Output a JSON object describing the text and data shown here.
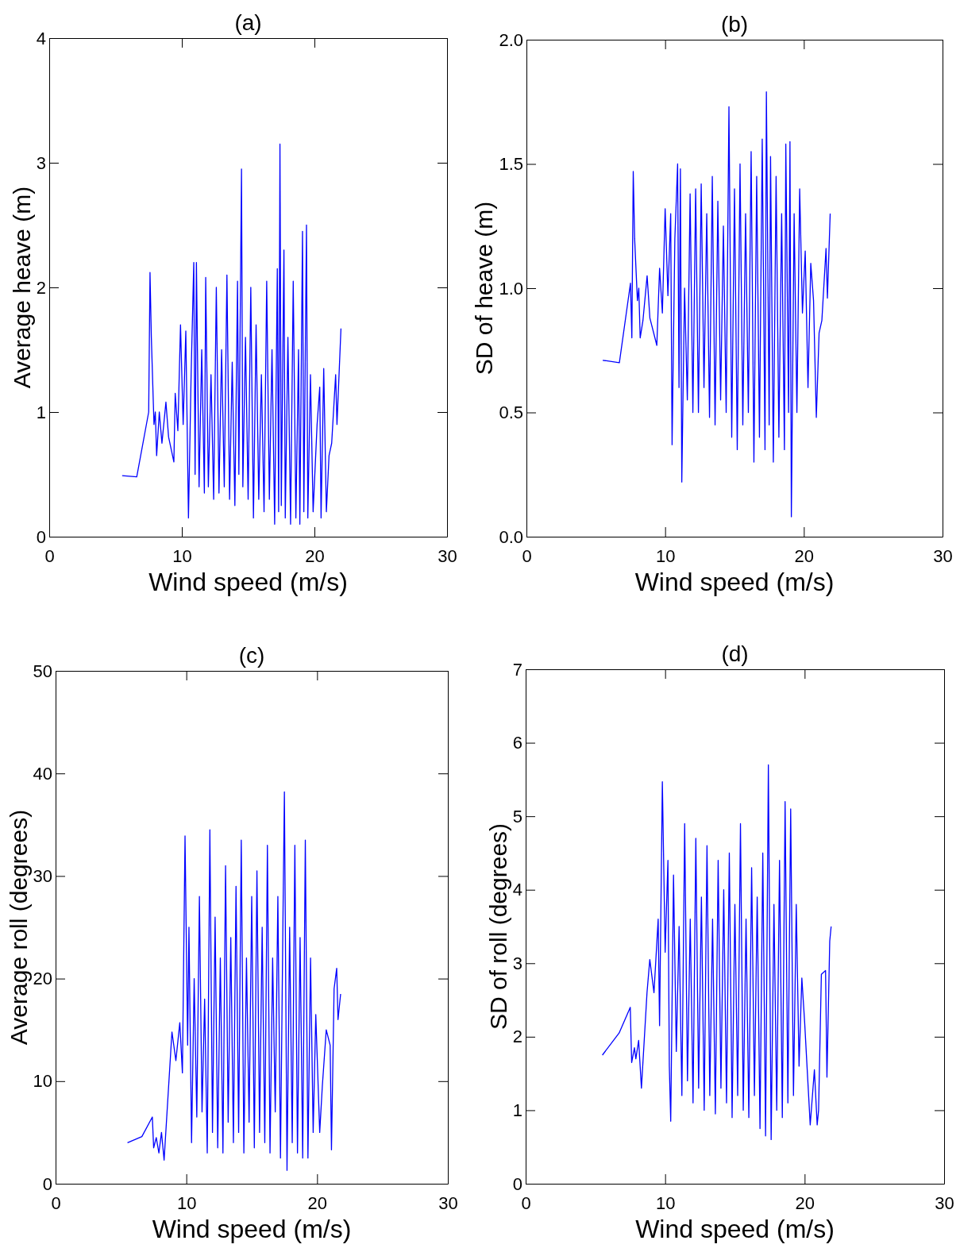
{
  "chart_data": [
    {
      "type": "line",
      "title": "(a)",
      "xlabel": "Wind speed (m/s)",
      "ylabel": "Average heave (m)",
      "xlim": [
        0,
        30
      ],
      "xticks": [
        0,
        10,
        20,
        30
      ],
      "ylim": [
        0,
        4
      ],
      "yticks": [
        0,
        1,
        2,
        3,
        4
      ],
      "grid": false,
      "series": [
        {
          "color": "#0000ff",
          "x": [
            5.5,
            6.6,
            7.5,
            7.6,
            7.7,
            7.9,
            8.0,
            8.1,
            8.3,
            8.5,
            8.8,
            9.0,
            9.4,
            9.5,
            9.7,
            9.9,
            10.1,
            10.3,
            10.5,
            10.7,
            10.9,
            11.0,
            11.1,
            11.3,
            11.5,
            11.7,
            11.8,
            12.0,
            12.2,
            12.4,
            12.6,
            12.8,
            13.0,
            13.2,
            13.4,
            13.6,
            13.8,
            14.0,
            14.2,
            14.3,
            14.5,
            14.6,
            14.8,
            15.0,
            15.2,
            15.4,
            15.6,
            15.8,
            16.0,
            16.2,
            16.4,
            16.6,
            16.8,
            17.0,
            17.2,
            17.3,
            17.4,
            17.5,
            17.7,
            17.8,
            18.0,
            18.2,
            18.4,
            18.6,
            18.8,
            18.9,
            19.1,
            19.2,
            19.4,
            19.5,
            19.7,
            19.9,
            20.2,
            20.4,
            20.5,
            20.7,
            20.9,
            21.1,
            21.3,
            21.6,
            21.7,
            22.0
          ],
          "values": [
            0.49,
            0.48,
            1.0,
            2.12,
            1.6,
            0.9,
            1.0,
            0.65,
            1.0,
            0.75,
            1.08,
            0.8,
            0.6,
            1.15,
            0.85,
            1.7,
            0.9,
            1.65,
            0.15,
            1.3,
            2.2,
            0.5,
            2.2,
            0.4,
            1.5,
            0.35,
            2.08,
            0.4,
            1.3,
            0.3,
            2.0,
            0.35,
            1.5,
            0.4,
            2.1,
            0.3,
            1.4,
            0.25,
            2.05,
            0.5,
            2.95,
            0.4,
            1.6,
            0.3,
            2.0,
            0.15,
            1.7,
            0.3,
            1.3,
            0.2,
            2.05,
            0.3,
            1.5,
            0.1,
            2.15,
            0.2,
            3.15,
            0.25,
            2.3,
            0.15,
            1.6,
            0.1,
            2.05,
            0.15,
            1.5,
            0.1,
            2.45,
            0.2,
            2.5,
            0.15,
            1.3,
            0.2,
            0.9,
            1.2,
            0.15,
            1.35,
            0.2,
            0.65,
            0.75,
            1.3,
            0.9,
            1.67
          ]
        }
      ]
    },
    {
      "type": "line",
      "title": "(b)",
      "xlabel": "Wind speed (m/s)",
      "ylabel": "SD of heave (m)",
      "xlim": [
        0,
        30
      ],
      "xticks": [
        0,
        10,
        20,
        30
      ],
      "ylim": [
        0,
        2
      ],
      "yticks": [
        {
          "value": 0,
          "label": "0.0"
        },
        {
          "value": 0.5,
          "label": "0.5"
        },
        {
          "value": 1,
          "label": "1.0"
        },
        {
          "value": 1.5,
          "label": "1.5"
        },
        {
          "value": 2,
          "label": "2.0"
        }
      ],
      "grid": false,
      "series": [
        {
          "color": "#0000ff",
          "x": [
            5.5,
            6.7,
            7.5,
            7.6,
            7.7,
            7.8,
            8.0,
            8.1,
            8.2,
            8.4,
            8.7,
            8.9,
            9.4,
            9.6,
            9.8,
            10.0,
            10.2,
            10.4,
            10.5,
            10.7,
            10.9,
            11.0,
            11.1,
            11.2,
            11.4,
            11.6,
            11.8,
            12.0,
            12.2,
            12.4,
            12.6,
            12.8,
            13.0,
            13.2,
            13.4,
            13.6,
            13.8,
            14.0,
            14.2,
            14.4,
            14.6,
            14.8,
            15.0,
            15.2,
            15.4,
            15.6,
            15.8,
            16.0,
            16.2,
            16.4,
            16.6,
            16.8,
            17.0,
            17.2,
            17.3,
            17.5,
            17.6,
            17.8,
            18.0,
            18.2,
            18.4,
            18.6,
            18.7,
            18.9,
            19.0,
            19.1,
            19.3,
            19.5,
            19.7,
            19.9,
            20.1,
            20.3,
            20.5,
            20.7,
            20.9,
            21.1,
            21.3,
            21.6,
            21.7,
            21.9
          ],
          "values": [
            0.71,
            0.7,
            1.02,
            0.8,
            1.47,
            1.2,
            0.95,
            1.0,
            0.8,
            0.87,
            1.05,
            0.88,
            0.77,
            1.08,
            0.9,
            1.32,
            0.97,
            1.3,
            0.37,
            1.2,
            1.5,
            0.6,
            1.48,
            0.22,
            1.0,
            0.55,
            1.38,
            0.5,
            1.4,
            0.5,
            1.42,
            0.6,
            1.3,
            0.48,
            1.45,
            0.45,
            1.35,
            0.55,
            1.25,
            0.5,
            1.73,
            0.4,
            1.4,
            0.35,
            1.5,
            0.45,
            1.3,
            0.5,
            1.55,
            0.3,
            1.45,
            0.4,
            1.6,
            0.35,
            1.79,
            0.45,
            1.53,
            0.3,
            1.45,
            0.4,
            1.3,
            0.35,
            1.58,
            0.5,
            1.59,
            0.08,
            1.3,
            0.5,
            1.4,
            0.9,
            1.15,
            0.6,
            1.1,
            0.95,
            0.48,
            0.82,
            0.87,
            1.16,
            0.96,
            1.3
          ]
        }
      ]
    },
    {
      "type": "line",
      "title": "(c)",
      "xlabel": "Wind speed (m/s)",
      "ylabel": "Average roll (degrees)",
      "xlim": [
        0,
        30
      ],
      "xticks": [
        0,
        10,
        20,
        30
      ],
      "ylim": [
        0,
        50
      ],
      "yticks": [
        0,
        10,
        20,
        30,
        40,
        50
      ],
      "grid": false,
      "series": [
        {
          "color": "#0000ff",
          "x": [
            5.5,
            6.6,
            7.4,
            7.5,
            7.7,
            7.9,
            8.1,
            8.3,
            8.9,
            9.2,
            9.5,
            9.7,
            9.9,
            10.1,
            10.2,
            10.4,
            10.6,
            10.8,
            11.0,
            11.2,
            11.4,
            11.6,
            11.8,
            12.0,
            12.2,
            12.4,
            12.6,
            12.8,
            13.0,
            13.2,
            13.4,
            13.6,
            13.8,
            14.0,
            14.2,
            14.4,
            14.6,
            14.8,
            15.0,
            15.2,
            15.4,
            15.6,
            15.8,
            16.0,
            16.2,
            16.4,
            16.6,
            16.8,
            17.0,
            17.2,
            17.4,
            17.5,
            17.7,
            17.9,
            18.1,
            18.3,
            18.5,
            18.7,
            18.9,
            19.1,
            19.3,
            19.5,
            19.7,
            19.9,
            20.2,
            20.4,
            20.7,
            21.0,
            21.1,
            21.3,
            21.5,
            21.6,
            21.8
          ],
          "values": [
            4,
            4.6,
            6.5,
            3.5,
            4.5,
            3.0,
            5.0,
            2.3,
            14.8,
            12,
            15.7,
            10.8,
            33.9,
            13.5,
            25,
            4,
            20,
            6.5,
            28,
            7,
            18,
            3,
            34.5,
            5,
            26,
            3.5,
            22,
            3,
            31,
            6,
            24,
            4,
            29,
            5,
            33.5,
            3,
            22,
            6,
            28,
            3.5,
            30.5,
            5,
            25,
            4,
            33,
            3,
            22,
            7,
            28,
            2.5,
            27,
            38.2,
            1.3,
            25,
            4,
            33,
            3,
            24,
            2.5,
            33.5,
            2.5,
            22,
            5,
            16.5,
            5,
            9.5,
            15,
            13.5,
            3.3,
            19,
            21,
            16,
            18.5
          ]
        }
      ]
    },
    {
      "type": "line",
      "title": "(d)",
      "xlabel": "Wind speed (m/s)",
      "ylabel": "SD of roll (degrees)",
      "xlim": [
        0,
        30
      ],
      "xticks": [
        0,
        10,
        20,
        30
      ],
      "ylim": [
        0,
        7
      ],
      "yticks": [
        0,
        1,
        2,
        3,
        4,
        5,
        6,
        7
      ],
      "grid": false,
      "series": [
        {
          "color": "#0000ff",
          "x": [
            5.5,
            6.7,
            7.5,
            7.6,
            7.8,
            7.9,
            8.1,
            8.3,
            8.7,
            8.9,
            9.2,
            9.5,
            9.6,
            9.8,
            10.0,
            10.2,
            10.3,
            10.4,
            10.6,
            10.8,
            11.0,
            11.2,
            11.4,
            11.6,
            11.8,
            12.0,
            12.2,
            12.4,
            12.6,
            12.8,
            13.0,
            13.2,
            13.4,
            13.6,
            13.8,
            14.0,
            14.2,
            14.4,
            14.6,
            14.8,
            15.0,
            15.2,
            15.4,
            15.6,
            15.8,
            16.0,
            16.2,
            16.4,
            16.6,
            16.8,
            17.0,
            17.2,
            17.4,
            17.6,
            17.8,
            18.0,
            18.2,
            18.4,
            18.6,
            18.8,
            19.0,
            19.2,
            19.4,
            19.6,
            19.8,
            20.0,
            20.2,
            20.4,
            20.7,
            20.9,
            21.0,
            21.2,
            21.5,
            21.6,
            21.8,
            21.9
          ],
          "values": [
            1.75,
            2.05,
            2.4,
            1.65,
            1.85,
            1.7,
            1.95,
            1.3,
            2.6,
            3.05,
            2.6,
            3.6,
            2.15,
            5.47,
            3.15,
            4.4,
            1.6,
            0.85,
            4.2,
            1.8,
            3.5,
            1.2,
            4.9,
            1.4,
            3.6,
            1.1,
            4.7,
            1.3,
            3.9,
            1.0,
            4.6,
            1.2,
            3.6,
            0.95,
            4.4,
            1.3,
            4.0,
            1.1,
            4.5,
            0.9,
            3.8,
            1.2,
            4.9,
            1.0,
            3.6,
            0.9,
            4.3,
            1.2,
            3.9,
            0.75,
            4.5,
            0.65,
            5.7,
            0.6,
            3.8,
            1.0,
            4.4,
            0.9,
            5.2,
            1.1,
            5.1,
            1.2,
            3.8,
            1.6,
            2.8,
            2.2,
            1.5,
            0.8,
            1.55,
            0.8,
            1.0,
            2.85,
            2.9,
            1.45,
            3.3,
            3.5
          ]
        }
      ]
    }
  ]
}
